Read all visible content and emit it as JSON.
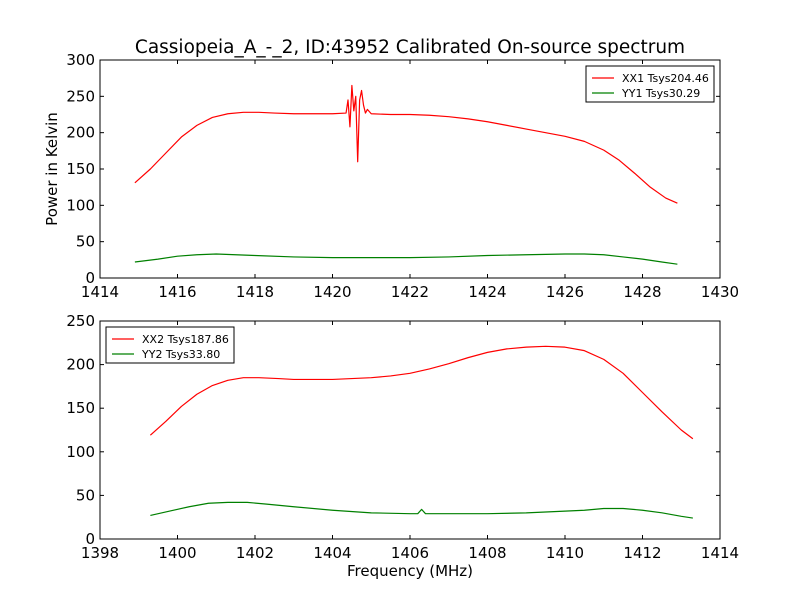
{
  "chart_data": [
    {
      "type": "line",
      "title": "Cassiopeia_A_-_2, ID:43952 Calibrated On-source spectrum",
      "xlabel": "",
      "ylabel": "Power in Kelvin",
      "xlim": [
        1414,
        1430
      ],
      "ylim": [
        0,
        300
      ],
      "xticks": [
        1414,
        1416,
        1418,
        1420,
        1422,
        1424,
        1426,
        1428,
        1430
      ],
      "yticks": [
        0,
        50,
        100,
        150,
        200,
        250,
        300
      ],
      "grid": false,
      "legend_placement": "top-right",
      "series": [
        {
          "name": "XX1 Tsys204.46",
          "color": "#ff0000",
          "x": [
            1414.9,
            1415.3,
            1415.7,
            1416.1,
            1416.5,
            1416.9,
            1417.3,
            1417.7,
            1418.1,
            1418.5,
            1419.0,
            1419.5,
            1420.0,
            1420.35,
            1420.4,
            1420.45,
            1420.5,
            1420.55,
            1420.6,
            1420.65,
            1420.7,
            1420.75,
            1420.8,
            1420.85,
            1420.9,
            1421.0,
            1421.5,
            1422.0,
            1422.5,
            1423.0,
            1423.5,
            1424.0,
            1424.5,
            1425.0,
            1425.5,
            1426.0,
            1426.5,
            1427.0,
            1427.4,
            1427.8,
            1428.2,
            1428.6,
            1428.9
          ],
          "values": [
            131,
            150,
            172,
            194,
            210,
            221,
            226,
            228,
            228,
            227,
            226,
            226,
            226,
            227,
            245,
            208,
            265,
            230,
            250,
            160,
            245,
            258,
            238,
            227,
            232,
            226,
            225,
            225,
            224,
            222,
            219,
            215,
            210,
            205,
            200,
            195,
            188,
            176,
            162,
            144,
            125,
            110,
            103
          ]
        },
        {
          "name": "YY1 Tsys30.29",
          "color": "#008000",
          "x": [
            1414.9,
            1415.5,
            1416.0,
            1416.5,
            1417.0,
            1417.5,
            1418.0,
            1419.0,
            1420.0,
            1421.0,
            1422.0,
            1423.0,
            1424.0,
            1425.0,
            1426.0,
            1426.5,
            1427.0,
            1427.5,
            1428.0,
            1428.5,
            1428.9
          ],
          "values": [
            22,
            26,
            30,
            32,
            33,
            32,
            31,
            29,
            28,
            28,
            28,
            29,
            31,
            32,
            33,
            33,
            32,
            29,
            26,
            22,
            19
          ]
        }
      ]
    },
    {
      "type": "line",
      "title": "",
      "xlabel": "Frequency (MHz)",
      "ylabel": "",
      "xlim": [
        1398,
        1414
      ],
      "ylim": [
        0,
        250
      ],
      "xticks": [
        1398,
        1400,
        1402,
        1404,
        1406,
        1408,
        1410,
        1412,
        1414
      ],
      "yticks": [
        0,
        50,
        100,
        150,
        200,
        250
      ],
      "grid": false,
      "legend_placement": "top-left",
      "series": [
        {
          "name": "XX2 Tsys187.86",
          "color": "#ff0000",
          "x": [
            1399.3,
            1399.7,
            1400.1,
            1400.5,
            1400.9,
            1401.3,
            1401.7,
            1402.1,
            1402.6,
            1403.0,
            1403.5,
            1404.0,
            1404.5,
            1405.0,
            1405.5,
            1406.0,
            1406.5,
            1407.0,
            1407.5,
            1408.0,
            1408.5,
            1409.0,
            1409.5,
            1410.0,
            1410.5,
            1411.0,
            1411.5,
            1412.0,
            1412.5,
            1413.0,
            1413.3
          ],
          "values": [
            119,
            135,
            152,
            166,
            176,
            182,
            185,
            185,
            184,
            183,
            183,
            183,
            184,
            185,
            187,
            190,
            195,
            201,
            208,
            214,
            218,
            220,
            221,
            220,
            216,
            206,
            190,
            168,
            146,
            125,
            115
          ]
        },
        {
          "name": "YY2 Tsys33.80",
          "color": "#008000",
          "x": [
            1399.3,
            1399.8,
            1400.3,
            1400.8,
            1401.3,
            1401.8,
            1402.3,
            1403.0,
            1404.0,
            1405.0,
            1406.0,
            1406.2,
            1406.3,
            1406.4,
            1406.6,
            1407.0,
            1408.0,
            1409.0,
            1410.0,
            1410.5,
            1411.0,
            1411.5,
            1412.0,
            1412.5,
            1413.0,
            1413.3
          ],
          "values": [
            27,
            32,
            37,
            41,
            42,
            42,
            40,
            37,
            33,
            30,
            29,
            29,
            34,
            29,
            29,
            29,
            29,
            30,
            32,
            33,
            35,
            35,
            33,
            30,
            26,
            24
          ]
        }
      ]
    }
  ]
}
